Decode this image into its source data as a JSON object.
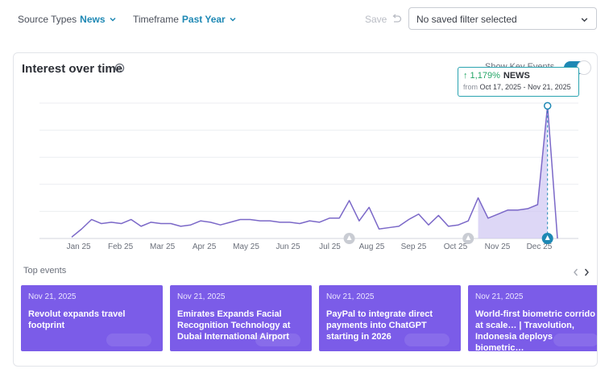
{
  "filters": {
    "source_types": {
      "label": "Source Types",
      "value": "News"
    },
    "timeframe": {
      "label": "Timeframe",
      "value": "Past Year"
    },
    "save_label": "Save",
    "saved_filter_placeholder": "No saved filter selected"
  },
  "card": {
    "title": "Interest over time",
    "key_events_label": "Show Key Events",
    "key_events_on": true
  },
  "tooltip": {
    "change": "↑ 1,179%",
    "series": "NEWS",
    "from_label": "from",
    "range": "Oct 17, 2025 - Nov 21, 2025"
  },
  "chart_data": {
    "type": "line",
    "x_ticks": [
      "Jan 25",
      "Feb 25",
      "Mar 25",
      "Apr 25",
      "May 25",
      "Jun 25",
      "Jul 25",
      "Aug 25",
      "Sep 25",
      "Oct 25",
      "Nov 25",
      "Dec 25"
    ],
    "series": [
      {
        "name": "NEWS",
        "color": "#7b68c8",
        "values": [
          1,
          7,
          14,
          11,
          12,
          11,
          14,
          9,
          12,
          11,
          11,
          9,
          10,
          13,
          12,
          10,
          12,
          14,
          14,
          13,
          13,
          12,
          12,
          11,
          13,
          12,
          15,
          15,
          28,
          13,
          23,
          7,
          8,
          9,
          14,
          18,
          10,
          17,
          9,
          10,
          13,
          30,
          15,
          18,
          21,
          21,
          22,
          25,
          98,
          0
        ]
      }
    ],
    "highlight_range_start_index": 41,
    "highlight_range_end_index": 48,
    "key_event_markers": [
      {
        "index": 28,
        "state": "inactive"
      },
      {
        "index": 40,
        "state": "inactive"
      },
      {
        "index": 48,
        "state": "active"
      }
    ],
    "ylim": [
      0,
      100
    ],
    "grid": true
  },
  "events": {
    "title": "Top events",
    "items": [
      {
        "date": "Nov 21, 2025",
        "title": "Revolut expands travel footprint"
      },
      {
        "date": "Nov 21, 2025",
        "title": "Emirates Expands Facial Recognition Technology at Dubai International Airport"
      },
      {
        "date": "Nov 21, 2025",
        "title": "PayPal to integrate direct payments into ChatGPT starting in 2026"
      },
      {
        "date": "Nov 21, 2025",
        "title": "World-first biometric corrido at scale… | Travolution, Indonesia deploys biometric…"
      }
    ]
  },
  "colors": {
    "accent": "#1e88b4",
    "series": "#7b68c8",
    "event_card": "#7b5ce8",
    "tooltip_border": "#2aa3b0"
  }
}
